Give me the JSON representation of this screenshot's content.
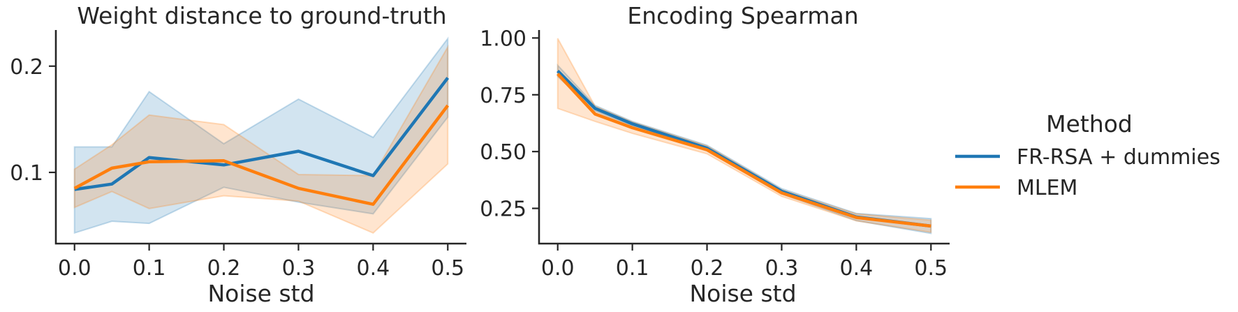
{
  "chart_data": [
    {
      "type": "line",
      "title": "Weight distance to ground-truth",
      "xlabel": "Noise std",
      "ylabel": "",
      "xlim": [
        -0.025,
        0.525
      ],
      "ylim": [
        0.033,
        0.234
      ],
      "xticks": [
        0.0,
        0.1,
        0.2,
        0.3,
        0.4,
        0.5
      ],
      "xtick_labels": [
        "0.0",
        "0.1",
        "0.2",
        "0.3",
        "0.4",
        "0.5"
      ],
      "yticks": [
        0.1,
        0.2
      ],
      "ytick_labels": [
        "0.1",
        "0.2"
      ],
      "x": [
        0.0,
        0.05,
        0.1,
        0.2,
        0.3,
        0.4,
        0.5
      ],
      "series": [
        {
          "name": "FR-RSA + dummies",
          "color": "#1f77b4",
          "values": [
            0.084,
            0.089,
            0.114,
            0.107,
            0.12,
            0.097,
            0.189
          ],
          "ci_low": [
            0.043,
            0.054,
            0.052,
            0.086,
            0.072,
            0.061,
            0.152
          ],
          "ci_high": [
            0.124,
            0.124,
            0.176,
            0.127,
            0.169,
            0.133,
            0.226
          ]
        },
        {
          "name": "MLEM",
          "color": "#ff7f0e",
          "values": [
            0.085,
            0.104,
            0.11,
            0.111,
            0.085,
            0.07,
            0.163
          ],
          "ci_low": [
            0.067,
            0.082,
            0.066,
            0.078,
            0.073,
            0.043,
            0.108
          ],
          "ci_high": [
            0.103,
            0.126,
            0.154,
            0.145,
            0.098,
            0.097,
            0.218
          ]
        }
      ]
    },
    {
      "type": "line",
      "title": "Encoding Spearman",
      "xlabel": "Noise std",
      "ylabel": "",
      "xlim": [
        -0.025,
        0.525
      ],
      "ylim": [
        0.095,
        1.035
      ],
      "xticks": [
        0.0,
        0.1,
        0.2,
        0.3,
        0.4,
        0.5
      ],
      "xtick_labels": [
        "0.0",
        "0.1",
        "0.2",
        "0.3",
        "0.4",
        "0.5"
      ],
      "yticks": [
        0.25,
        0.5,
        0.75,
        1.0
      ],
      "ytick_labels": [
        "0.25",
        "0.50",
        "0.75",
        "1.00"
      ],
      "x": [
        0.0,
        0.05,
        0.1,
        0.2,
        0.3,
        0.4,
        0.5
      ],
      "series": [
        {
          "name": "FR-RSA + dummies",
          "color": "#1f77b4",
          "values": [
            0.855,
            0.69,
            0.622,
            0.515,
            0.325,
            0.212,
            0.172
          ],
          "ci_low": [
            0.83,
            0.678,
            0.612,
            0.503,
            0.314,
            0.196,
            0.14
          ],
          "ci_high": [
            0.88,
            0.703,
            0.633,
            0.528,
            0.337,
            0.228,
            0.205
          ]
        },
        {
          "name": "MLEM",
          "color": "#ff7f0e",
          "values": [
            0.842,
            0.665,
            0.605,
            0.508,
            0.318,
            0.21,
            0.172
          ],
          "ci_low": [
            0.69,
            0.633,
            0.58,
            0.49,
            0.303,
            0.195,
            0.145
          ],
          "ci_high": [
            0.998,
            0.7,
            0.63,
            0.525,
            0.332,
            0.226,
            0.198
          ]
        }
      ]
    }
  ],
  "legend": {
    "title": "Method",
    "placement": "right",
    "items": [
      {
        "label": "FR-RSA + dummies",
        "color": "#1f77b4"
      },
      {
        "label": "MLEM",
        "color": "#ff7f0e"
      }
    ]
  }
}
